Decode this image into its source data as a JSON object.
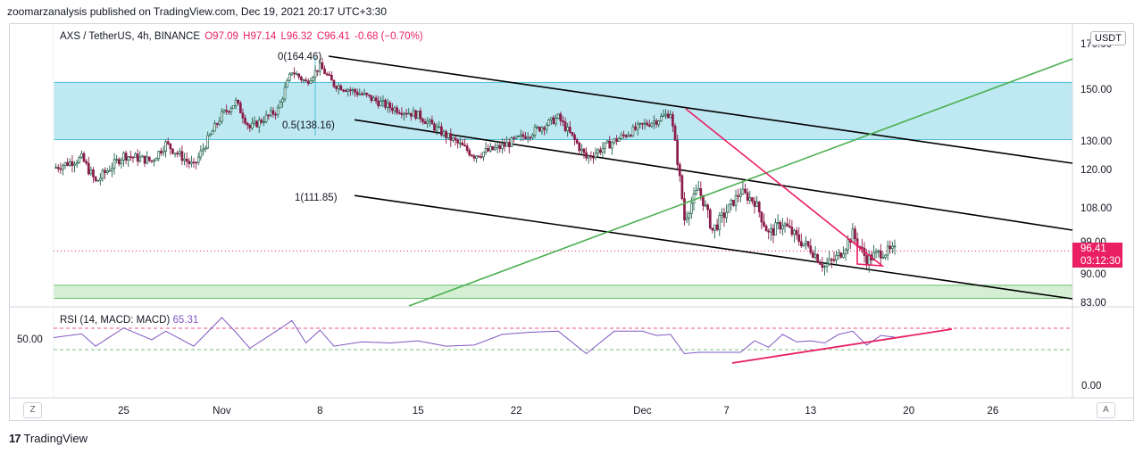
{
  "header_text": "zoomarzanalysis published on TradingView.com, Dec 19, 2021 20:17 UTC+3:30",
  "footer": {
    "brand": "TradingView",
    "logo_mark": "17"
  },
  "legend": {
    "symbol": "AXS / TetherUS, 4h, BINANCE",
    "open": "O97.09",
    "high": "H97.14",
    "low": "L96.32",
    "close": "C96.41",
    "change": "-0.68 (−0.70%)"
  },
  "currency_button": "USDT",
  "last_price": {
    "value": "96.41",
    "countdown": "03:12:30"
  },
  "controls": {
    "z": "Z",
    "a": "A"
  },
  "chart_data": {
    "type": "candlestick",
    "symbol": "AXS / TetherUS",
    "interval": "4h",
    "exchange": "BINANCE",
    "price_axis_labels": [
      "150.00",
      "130.00",
      "120.00",
      "108.00",
      "99.00",
      "90.00",
      "83.00"
    ],
    "price_axis_partial_top": "170.00",
    "x_axis_labels": [
      "25",
      "Nov",
      "8",
      "15",
      "22",
      "Dec",
      "7",
      "13",
      "20",
      "26"
    ],
    "close_path": [
      {
        "x": "Oct 20",
        "y": 120.5
      },
      {
        "x": "Oct 22",
        "y": 124
      },
      {
        "x": "Oct 23",
        "y": 116
      },
      {
        "x": "Oct 25",
        "y": 125
      },
      {
        "x": "Oct 27",
        "y": 123
      },
      {
        "x": "Oct 28",
        "y": 129
      },
      {
        "x": "Oct 30",
        "y": 121
      },
      {
        "x": "Nov 1",
        "y": 140
      },
      {
        "x": "Nov 2",
        "y": 145
      },
      {
        "x": "Nov 3",
        "y": 135
      },
      {
        "x": "Nov 5",
        "y": 142
      },
      {
        "x": "Nov 6",
        "y": 158
      },
      {
        "x": "Nov 7",
        "y": 153
      },
      {
        "x": "Nov 8",
        "y": 160
      },
      {
        "x": "Nov 9",
        "y": 152
      },
      {
        "x": "Nov 11",
        "y": 148
      },
      {
        "x": "Nov 13",
        "y": 143
      },
      {
        "x": "Nov 15",
        "y": 140
      },
      {
        "x": "Nov 17",
        "y": 132
      },
      {
        "x": "Nov 19",
        "y": 125
      },
      {
        "x": "Nov 21",
        "y": 128
      },
      {
        "x": "Nov 23",
        "y": 133
      },
      {
        "x": "Nov 25",
        "y": 139
      },
      {
        "x": "Nov 27",
        "y": 124
      },
      {
        "x": "Nov 29",
        "y": 130
      },
      {
        "x": "Dec 1",
        "y": 136
      },
      {
        "x": "Dec 2",
        "y": 138
      },
      {
        "x": "Dec 3",
        "y": 141
      },
      {
        "x": "Dec 4",
        "y": 105
      },
      {
        "x": "Dec 5",
        "y": 114
      },
      {
        "x": "Dec 6",
        "y": 102
      },
      {
        "x": "Dec 7",
        "y": 107
      },
      {
        "x": "Dec 8",
        "y": 113
      },
      {
        "x": "Dec 9",
        "y": 110
      },
      {
        "x": "Dec 10",
        "y": 101
      },
      {
        "x": "Dec 11",
        "y": 104
      },
      {
        "x": "Dec 12",
        "y": 100
      },
      {
        "x": "Dec 13",
        "y": 97
      },
      {
        "x": "Dec 14",
        "y": 92
      },
      {
        "x": "Dec 15",
        "y": 95
      },
      {
        "x": "Dec 16",
        "y": 101
      },
      {
        "x": "Dec 17",
        "y": 94
      },
      {
        "x": "Dec 18",
        "y": 96
      },
      {
        "x": "Dec 19",
        "y": 96.41
      }
    ],
    "zones": [
      {
        "name": "resistance zone",
        "from": 130.5,
        "to": 153,
        "color": "#bfe9f2"
      },
      {
        "name": "support zone",
        "from": 84,
        "to": 87.2,
        "color": "#d5efd5"
      }
    ],
    "fib_labels": [
      "0(164.46)",
      "0.5(138.16)",
      "1(111.85)"
    ],
    "current_price_line": 96.41,
    "colors": {
      "up": "#26a69a",
      "down": "#e91e63",
      "candle": "#1f5f4a",
      "rsi": "#7e57c2",
      "channel": "#000000",
      "trendline_green": "#4caf50",
      "trendline_pink": "#e91e63"
    },
    "rsi": {
      "label": "RSI (14, MACD: MACD)",
      "value": "65.31",
      "axis_labels": [
        "50.00",
        "0.00"
      ],
      "levels": {
        "upper": 70,
        "middle": 50
      },
      "trendline_color": "#e91e63"
    }
  }
}
